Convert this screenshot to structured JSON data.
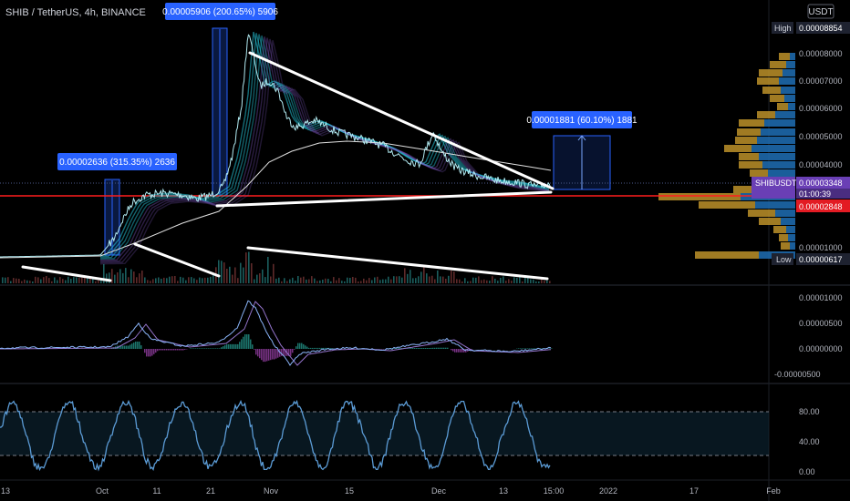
{
  "header": {
    "symbol_title": "SHIB / TetherUS, 4h, BINANCE",
    "currency_button": "USDT"
  },
  "annotations": [
    {
      "text": "0.00002636 (315.35%) 2636"
    },
    {
      "text": "0.00005906 (200.65%) 5906"
    },
    {
      "text": "0.00001881 (60.10%) 1881"
    }
  ],
  "price_axis": {
    "ticks": [
      "0.00008000",
      "0.00007000",
      "0.00006000",
      "0.00005000",
      "0.00004000",
      "0.00001000"
    ],
    "high_label": "High",
    "high_value": "0.00008854",
    "symbol_tag": "SHIBUSDT",
    "last_price": "0.00003348",
    "countdown": "01:00:39",
    "red_line_price": "0.00002848",
    "low_label": "Low",
    "low_value": "0.00000617"
  },
  "macd_axis": {
    "ticks": [
      "0.00001000",
      "0.00000500",
      "0.00000000",
      "-0.00000500"
    ]
  },
  "stoch_axis": {
    "ticks": [
      "80.00",
      "40.00",
      "0.00"
    ]
  },
  "time_axis": {
    "labels": [
      "13",
      "Oct",
      "11",
      "21",
      "Nov",
      "15",
      "Dec",
      "13",
      "15:00",
      "2022",
      "17",
      "Feb"
    ]
  },
  "colors": {
    "background": "#000000",
    "annotation_box": "#2962ff",
    "cyan": "#26c6da",
    "purple": "#7e57c2",
    "red_line": "#ff1e1e",
    "volume_profile_up": "#1e6fb5",
    "volume_profile_down": "#c89a2c",
    "stoch_line": "#5b9bd5",
    "macd_line": "#8ab4f8"
  }
}
